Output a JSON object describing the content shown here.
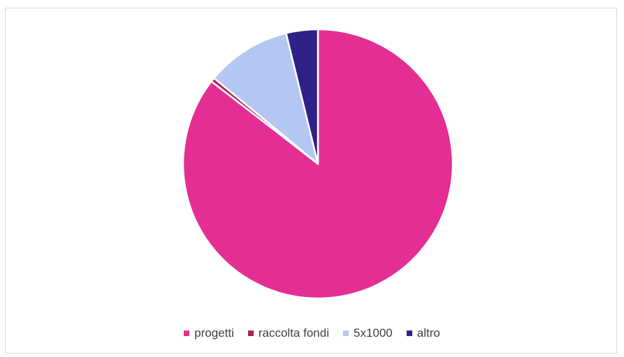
{
  "chart_data": {
    "type": "pie",
    "title": "",
    "start_angle_deg": 0,
    "direction": "clockwise",
    "legend_position": "bottom",
    "slices": [
      {
        "label": "progetti",
        "value": 85.5,
        "color": "#E32F93"
      },
      {
        "label": "raccolta fondi",
        "value": 0.5,
        "color": "#B0234F"
      },
      {
        "label": "5x1000",
        "value": 10.2,
        "color": "#B4C7F3"
      },
      {
        "label": "altro",
        "value": 3.8,
        "color": "#2E2287"
      }
    ]
  }
}
